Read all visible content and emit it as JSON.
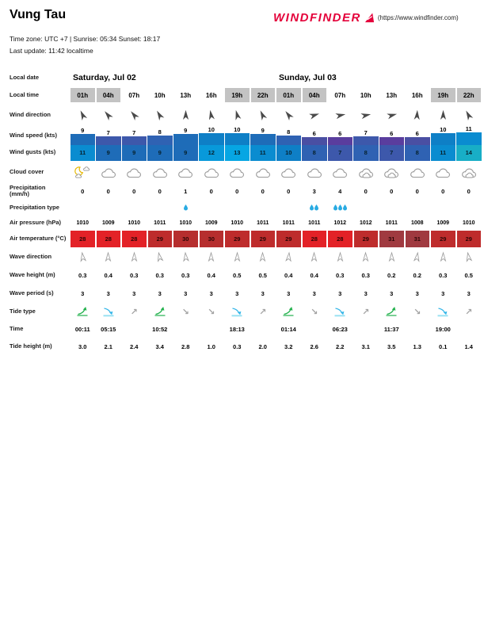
{
  "header": {
    "title": "Vung Tau",
    "logo_text": "WINDFINDER",
    "logo_link": "(https://www.windfinder.com)",
    "meta_line1": "Time zone: UTC +7 | Sunrise: 05:34 Sunset: 18:17",
    "meta_line2": "Last update: 11:42 localtime"
  },
  "table": {
    "row_labels": {
      "local_date": "Local date",
      "local_time": "Local time",
      "wind_direction": "Wind direction",
      "wind_speed": "Wind speed (kts)",
      "wind_gusts": "Wind gusts (kts)",
      "cloud_cover": "Cloud cover",
      "precipitation": "Precipitation (mm/h)",
      "precipitation_type": "Precipitation type",
      "air_pressure": "Air pressure (hPa)",
      "air_temperature": "Air temperature (°C)",
      "wave_direction": "Wave direction",
      "wave_height": "Wave height (m)",
      "wave_period": "Wave period (s)",
      "tide_type": "Tide type",
      "time": "Time",
      "tide_height": "Tide height (m)"
    },
    "days": [
      {
        "label": "Saturday, Jul 02",
        "span": 8
      },
      {
        "label": "Sunday, Jul 03",
        "span": 8
      }
    ],
    "night_color": "#c3c3c3",
    "icon_colors": {
      "wind_arrow": "#4a4a4a",
      "wave_arrow": "#9a9a9a",
      "cloud_stroke": "#999999",
      "moon": "#e6b800",
      "droplet": "#29abe2",
      "tide_high": "#22b14c",
      "tide_low": "#35b6e8",
      "tide_low_base": "#9ae2f2",
      "tide_trend": "#a3a3a3",
      "logo_red": "#e4003a"
    },
    "columns": [
      {
        "time": "01h",
        "night": true,
        "wind_dir_deg": -25,
        "wind_speed": 9,
        "wind_speed_color": "#1e6cb8",
        "wind_gust": 11,
        "wind_gust_color": "#0a8cd0",
        "cloud": "moon-cloud",
        "precip": "0",
        "precip_drops": 0,
        "pressure": "1010",
        "temp": "28",
        "temp_color": "#e32227",
        "wave_dir_deg": -8,
        "wave_height": "0.3",
        "wave_period": "3",
        "tide": "high",
        "tide_time": "00:11",
        "tide_height": "3.0"
      },
      {
        "time": "04h",
        "night": true,
        "wind_dir_deg": -40,
        "wind_speed": 7,
        "wind_speed_color": "#3d58ab",
        "wind_gust": 9,
        "wind_gust_color": "#1e6cb8",
        "cloud": "cloud",
        "precip": "0",
        "precip_drops": 0,
        "pressure": "1009",
        "temp": "28",
        "temp_color": "#e32227",
        "wave_dir_deg": 0,
        "wave_height": "0.4",
        "wave_period": "3",
        "tide": "low",
        "tide_time": "05:15",
        "tide_height": "2.1"
      },
      {
        "time": "07h",
        "night": false,
        "wind_dir_deg": -40,
        "wind_speed": 7,
        "wind_speed_color": "#3d58ab",
        "wind_gust": 9,
        "wind_gust_color": "#1e6cb8",
        "cloud": "cloud",
        "precip": "0",
        "precip_drops": 0,
        "pressure": "1010",
        "temp": "28",
        "temp_color": "#e32227",
        "wave_dir_deg": 0,
        "wave_height": "0.3",
        "wave_period": "3",
        "tide": "rising",
        "tide_time": "",
        "tide_height": "2.4"
      },
      {
        "time": "10h",
        "night": false,
        "wind_dir_deg": -30,
        "wind_speed": 8,
        "wind_speed_color": "#2f62b3",
        "wind_gust": 9,
        "wind_gust_color": "#1e6cb8",
        "cloud": "cloud",
        "precip": "0",
        "precip_drops": 0,
        "pressure": "1011",
        "temp": "29",
        "temp_color": "#be2c2c",
        "wave_dir_deg": -12,
        "wave_height": "0.3",
        "wave_period": "3",
        "tide": "high",
        "tide_time": "10:52",
        "tide_height": "3.4"
      },
      {
        "time": "13h",
        "night": false,
        "wind_dir_deg": 0,
        "wind_speed": 9,
        "wind_speed_color": "#1e6cb8",
        "wind_gust": 9,
        "wind_gust_color": "#1e6cb8",
        "cloud": "cloud",
        "precip": "1",
        "precip_drops": 1,
        "pressure": "1010",
        "temp": "30",
        "temp_color": "#b62e2e",
        "wave_dir_deg": -5,
        "wave_height": "0.3",
        "wave_period": "3",
        "tide": "falling",
        "tide_time": "",
        "tide_height": "2.8"
      },
      {
        "time": "16h",
        "night": false,
        "wind_dir_deg": -10,
        "wind_speed": 10,
        "wind_speed_color": "#0e7fc6",
        "wind_gust": 12,
        "wind_gust_color": "#0899da",
        "cloud": "cloud",
        "precip": "0",
        "precip_drops": 0,
        "pressure": "1009",
        "temp": "30",
        "temp_color": "#b62e2e",
        "wave_dir_deg": 0,
        "wave_height": "0.4",
        "wave_period": "3",
        "tide": "falling",
        "tide_time": "",
        "tide_height": "1.0"
      },
      {
        "time": "19h",
        "night": true,
        "wind_dir_deg": -15,
        "wind_speed": 10,
        "wind_speed_color": "#0e7fc6",
        "wind_gust": 13,
        "wind_gust_color": "#06a6e3",
        "cloud": "cloud",
        "precip": "0",
        "precip_drops": 0,
        "pressure": "1010",
        "temp": "29",
        "temp_color": "#be2c2c",
        "wave_dir_deg": 0,
        "wave_height": "0.5",
        "wave_period": "3",
        "tide": "low",
        "tide_time": "18:13",
        "tide_height": "0.3"
      },
      {
        "time": "22h",
        "night": true,
        "wind_dir_deg": -25,
        "wind_speed": 9,
        "wind_speed_color": "#1e6cb8",
        "wind_gust": 11,
        "wind_gust_color": "#0a8cd0",
        "cloud": "cloud",
        "precip": "0",
        "precip_drops": 0,
        "pressure": "1011",
        "temp": "29",
        "temp_color": "#be2c2c",
        "wave_dir_deg": 0,
        "wave_height": "0.5",
        "wave_period": "3",
        "tide": "rising",
        "tide_time": "",
        "tide_height": "2.0"
      },
      {
        "time": "01h",
        "night": true,
        "wind_dir_deg": -38,
        "wind_speed": 8,
        "wind_speed_color": "#2f62b3",
        "wind_gust": 10,
        "wind_gust_color": "#0e7fc6",
        "cloud": "cloud",
        "precip": "0",
        "precip_drops": 0,
        "pressure": "1011",
        "temp": "29",
        "temp_color": "#be2c2c",
        "wave_dir_deg": 5,
        "wave_height": "0.4",
        "wave_period": "3",
        "tide": "high",
        "tide_time": "01:14",
        "tide_height": "3.2"
      },
      {
        "time": "04h",
        "night": true,
        "wind_dir_deg": 72,
        "wind_speed": 6,
        "wind_speed_color": "#4a4fa3",
        "wind_gust": 8,
        "wind_gust_color": "#2f62b3",
        "cloud": "cloud",
        "precip": "3",
        "precip_drops": 2,
        "pressure": "1011",
        "temp": "28",
        "temp_color": "#e32227",
        "wave_dir_deg": 0,
        "wave_height": "0.4",
        "wave_period": "3",
        "tide": "falling",
        "tide_time": "",
        "tide_height": "2.6"
      },
      {
        "time": "07h",
        "night": false,
        "wind_dir_deg": 78,
        "wind_speed": 6,
        "wind_speed_color": "#5a3d9e",
        "wind_gust": 7,
        "wind_gust_color": "#3d58ab",
        "cloud": "cloud",
        "precip": "4",
        "precip_drops": 3,
        "pressure": "1012",
        "temp": "28",
        "temp_color": "#e32227",
        "wave_dir_deg": 0,
        "wave_height": "0.3",
        "wave_period": "3",
        "tide": "low",
        "tide_time": "06:23",
        "tide_height": "2.2"
      },
      {
        "time": "10h",
        "night": false,
        "wind_dir_deg": 78,
        "wind_speed": 7,
        "wind_speed_color": "#3d58ab",
        "wind_gust": 8,
        "wind_gust_color": "#2f62b3",
        "cloud": "cloud2",
        "precip": "0",
        "precip_drops": 0,
        "pressure": "1012",
        "temp": "29",
        "temp_color": "#be2c2c",
        "wave_dir_deg": 0,
        "wave_height": "0.3",
        "wave_period": "3",
        "tide": "rising",
        "tide_time": "",
        "tide_height": "3.1"
      },
      {
        "time": "13h",
        "night": false,
        "wind_dir_deg": 75,
        "wind_speed": 6,
        "wind_speed_color": "#5a3d9e",
        "wind_gust": 7,
        "wind_gust_color": "#3d58ab",
        "cloud": "cloud2",
        "precip": "0",
        "precip_drops": 0,
        "pressure": "1011",
        "temp": "31",
        "temp_color": "#a03a40",
        "wave_dir_deg": 0,
        "wave_height": "0.2",
        "wave_period": "3",
        "tide": "high",
        "tide_time": "11:37",
        "tide_height": "3.5"
      },
      {
        "time": "16h",
        "night": false,
        "wind_dir_deg": 3,
        "wind_speed": 6,
        "wind_speed_color": "#4a4fa3",
        "wind_gust": 8,
        "wind_gust_color": "#2f62b3",
        "cloud": "cloud",
        "precip": "0",
        "precip_drops": 0,
        "pressure": "1008",
        "temp": "31",
        "temp_color": "#a03a40",
        "wave_dir_deg": 8,
        "wave_height": "0.2",
        "wave_period": "3",
        "tide": "falling",
        "tide_time": "",
        "tide_height": "1.3"
      },
      {
        "time": "19h",
        "night": true,
        "wind_dir_deg": 0,
        "wind_speed": 10,
        "wind_speed_color": "#0e7fc6",
        "wind_gust": 11,
        "wind_gust_color": "#0a8cd0",
        "cloud": "cloud",
        "precip": "0",
        "precip_drops": 0,
        "pressure": "1009",
        "temp": "29",
        "temp_color": "#be2c2c",
        "wave_dir_deg": 0,
        "wave_height": "0.3",
        "wave_period": "3",
        "tide": "low",
        "tide_time": "19:00",
        "tide_height": "0.1"
      },
      {
        "time": "22h",
        "night": true,
        "wind_dir_deg": -28,
        "wind_speed": 11,
        "wind_speed_color": "#0a8cd0",
        "wind_gust": 14,
        "wind_gust_color": "#18aec6",
        "cloud": "cloud2",
        "precip": "0",
        "precip_drops": 0,
        "pressure": "1010",
        "temp": "29",
        "temp_color": "#be2c2c",
        "wave_dir_deg": -10,
        "wave_height": "0.5",
        "wave_period": "3",
        "tide": "rising",
        "tide_time": "",
        "tide_height": "1.4"
      }
    ]
  }
}
